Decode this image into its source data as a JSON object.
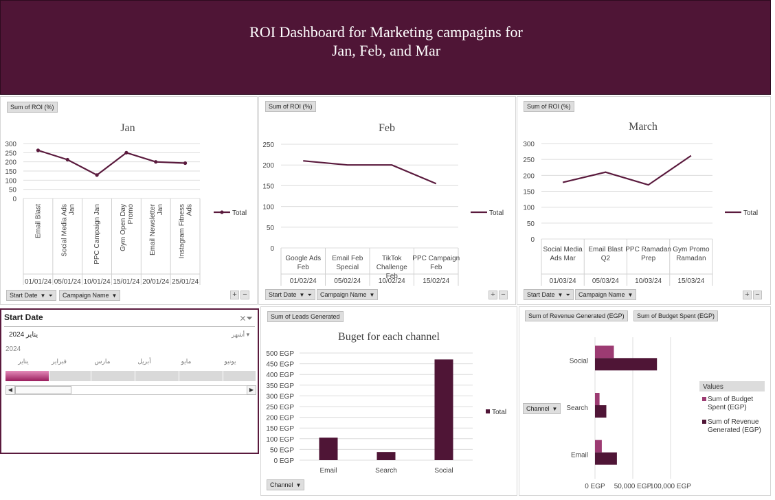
{
  "header": {
    "title_line1": "ROI Dashboard for Marketing campagins for",
    "title_line2": "Jan, Feb, and Mar"
  },
  "charts_common": {
    "roi_field": "Sum of ROI (%)",
    "start_date_field": "Start Date",
    "campaign_name_field": "Campaign Name",
    "plus": "+",
    "minus": "−",
    "legend_total": "Total"
  },
  "slicer": {
    "title": "Start Date",
    "period_label": "يناير 2024",
    "level_label": "أشهر",
    "year": "2024",
    "months": [
      "يناير",
      "فبراير",
      "مارس",
      "أبريل",
      "مايو",
      "يونيو"
    ],
    "selected_month": "يناير",
    "scroll_left": "◀",
    "scroll_right": "▶"
  },
  "leads_panel": {
    "field": "Sum of Leads Generated",
    "filter": "Channel"
  },
  "revenue_panel": {
    "field_revenue": "Sum of Revenue Generated (EGP)",
    "field_budget": "Sum of Budget Spent (EGP)",
    "filter": "Channel",
    "legend_title": "Values"
  },
  "chart_data": [
    {
      "type": "line",
      "title": "Jan",
      "ylim": [
        0,
        300
      ],
      "yticks": [
        0,
        50,
        100,
        150,
        200,
        250,
        300
      ],
      "categories": [
        "Email Blast",
        "Social Media Ads Jan",
        "PPC Campaign Jan",
        "Gym Open Day Promo",
        "Email Newsletter Jan",
        "Instagram Fitness Ads"
      ],
      "dates": [
        "01/01/24",
        "05/01/24",
        "10/01/24",
        "15/01/24",
        "20/01/24",
        "25/01/24"
      ],
      "series": [
        {
          "name": "Total",
          "values": [
            263,
            212,
            128,
            250,
            200,
            193
          ]
        }
      ],
      "color": "#5a1a3d",
      "grid": true,
      "legend": "right"
    },
    {
      "type": "line",
      "title": "Feb",
      "ylim": [
        0,
        250
      ],
      "yticks": [
        0,
        50,
        100,
        150,
        200,
        250
      ],
      "categories": [
        "Google Ads Feb",
        "Email Feb Special",
        "TikTok Challenge Feb",
        "PPC Campaign Feb"
      ],
      "dates": [
        "01/02/24",
        "05/02/24",
        "10/02/24",
        "15/02/24"
      ],
      "series": [
        {
          "name": "Total",
          "values": [
            210,
            200,
            200,
            155
          ]
        }
      ],
      "color": "#5a1a3d",
      "grid": true,
      "legend": "right"
    },
    {
      "type": "line",
      "title": "March",
      "ylim": [
        0,
        300
      ],
      "yticks": [
        0,
        50,
        100,
        150,
        200,
        250,
        300
      ],
      "categories": [
        "Social Media Ads Mar",
        "Email Blast Q2",
        "PPC Ramadan Prep",
        "Gym Promo Ramadan"
      ],
      "dates": [
        "01/03/24",
        "05/03/24",
        "10/03/24",
        "15/03/24"
      ],
      "series": [
        {
          "name": "Total",
          "values": [
            178,
            210,
            170,
            262
          ]
        }
      ],
      "color": "#5a1a3d",
      "grid": true,
      "legend": "right"
    },
    {
      "type": "bar",
      "title": "Buget for each channel",
      "categories": [
        "Email",
        "Search",
        "Social"
      ],
      "series": [
        {
          "name": "Total",
          "values": [
            105,
            38,
            470
          ]
        }
      ],
      "ylim": [
        0,
        500
      ],
      "yticks": [
        0,
        50,
        100,
        150,
        200,
        250,
        300,
        350,
        400,
        450,
        500
      ],
      "tick_labels": [
        "0 EGP",
        "50 EGP",
        "100 EGP",
        "150 EGP",
        "200 EGP",
        "250 EGP",
        "300 EGP",
        "350 EGP",
        "400 EGP",
        "450 EGP",
        "500 EGP"
      ],
      "color": "#4f1536",
      "grid": true,
      "legend": "right"
    },
    {
      "type": "bar",
      "orientation": "horizontal",
      "categories": [
        "Social",
        "Search",
        "Email"
      ],
      "series": [
        {
          "name": "Sum of Budget Spent (EGP)",
          "values": [
            25000,
            6000,
            9000
          ],
          "color": "#9c3b72"
        },
        {
          "name": "Sum of Revenue Generated (EGP)",
          "values": [
            82000,
            15000,
            29000
          ],
          "color": "#4f1536"
        }
      ],
      "xlim": [
        0,
        100000
      ],
      "xticks": [
        0,
        50000,
        100000
      ],
      "tick_labels": [
        "0 EGP",
        "50,000 EGP",
        "100,000 EGP"
      ],
      "grid": true,
      "legend": "right"
    }
  ]
}
